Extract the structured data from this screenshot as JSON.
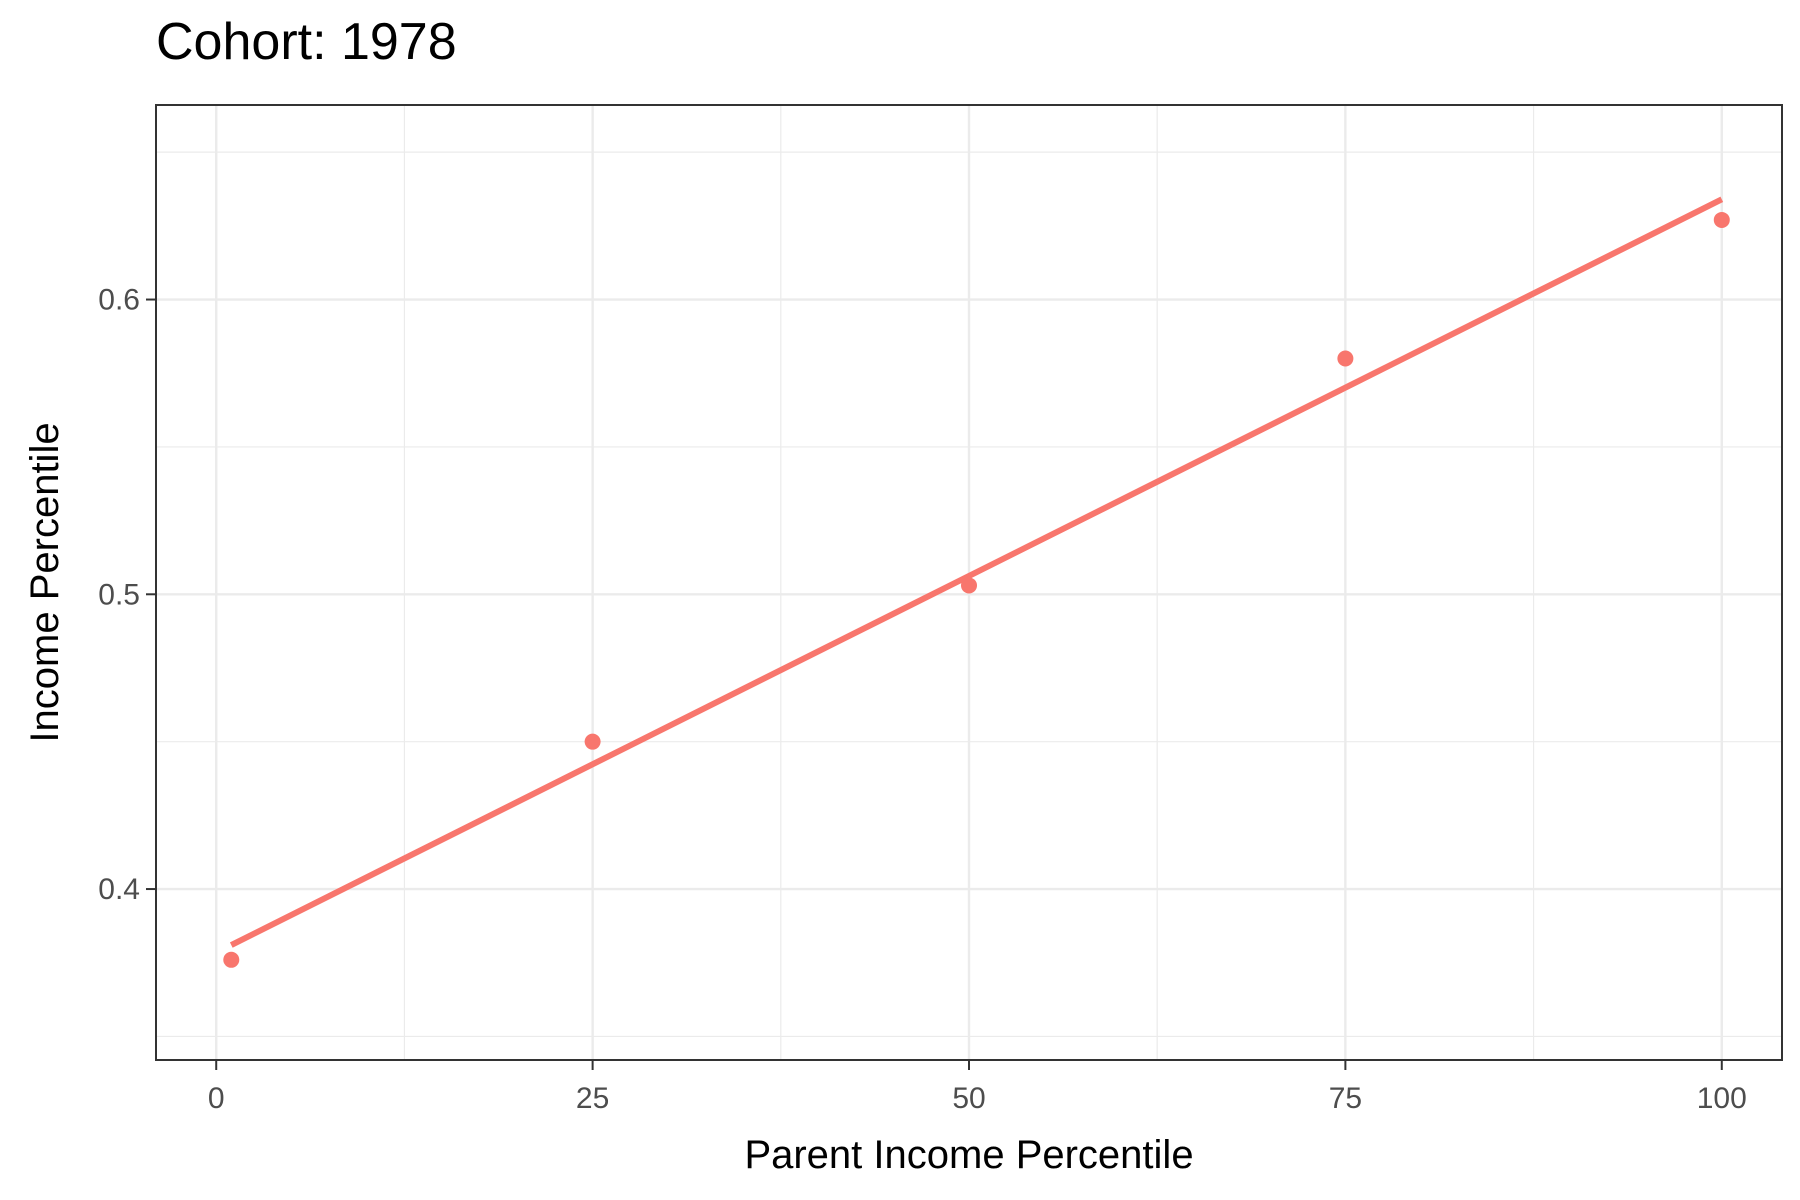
{
  "chart_data": {
    "type": "scatter",
    "title": "Cohort: 1978",
    "xlabel": "Parent Income Percentile",
    "ylabel": "Income Percentile",
    "xlim": [
      -4,
      104
    ],
    "ylim": [
      0.342,
      0.666
    ],
    "x_ticks": [
      0,
      25,
      50,
      75,
      100
    ],
    "x_tick_labels": [
      "0",
      "25",
      "50",
      "75",
      "100"
    ],
    "y_ticks": [
      0.4,
      0.5,
      0.6
    ],
    "y_tick_labels": [
      "0.4",
      "0.5",
      "0.6"
    ],
    "grid": true,
    "points": [
      {
        "x": 1,
        "y": 0.376
      },
      {
        "x": 25,
        "y": 0.45
      },
      {
        "x": 50,
        "y": 0.503
      },
      {
        "x": 75,
        "y": 0.58
      },
      {
        "x": 100,
        "y": 0.627
      }
    ],
    "fit_line": {
      "x": [
        1,
        100
      ],
      "y": [
        0.381,
        0.634
      ]
    },
    "colors": {
      "series": "#f8766d",
      "grid": "#ebebeb",
      "panel_border": "#333333"
    }
  }
}
